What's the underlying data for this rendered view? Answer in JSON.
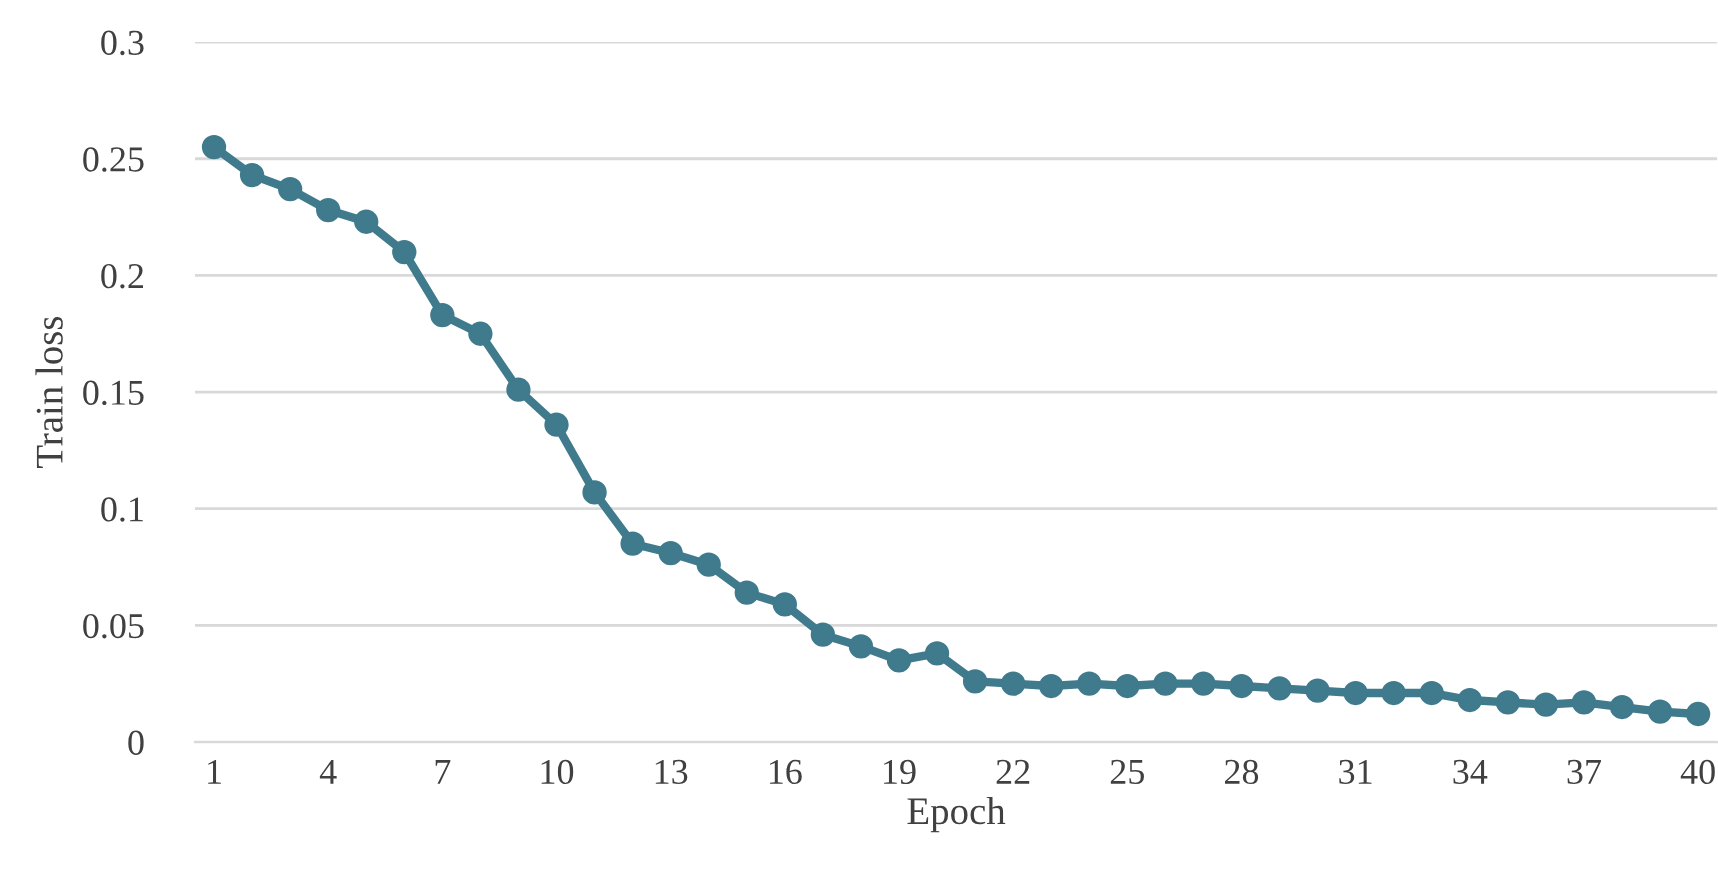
{
  "chart_data": {
    "type": "line",
    "xlabel": "Epoch",
    "ylabel": "Train loss",
    "categories": [
      "1",
      null,
      null,
      "4",
      null,
      null,
      "7",
      null,
      null,
      "10",
      null,
      null,
      "13",
      null,
      null,
      "16",
      null,
      null,
      "19",
      null,
      null,
      "22",
      null,
      null,
      "25",
      null,
      null,
      "28",
      null,
      null,
      "31",
      null,
      null,
      "34",
      null,
      null,
      "37",
      null,
      null,
      "40"
    ],
    "series": [
      {
        "color": "#3f7a8d",
        "values": [
          0.255,
          0.243,
          0.237,
          0.228,
          0.223,
          0.21,
          0.183,
          0.175,
          0.151,
          0.136,
          0.107,
          0.085,
          0.081,
          0.076,
          0.064,
          0.059,
          0.046,
          0.041,
          0.035,
          0.038,
          0.026,
          0.025,
          0.024,
          0.025,
          0.024,
          0.025,
          0.025,
          0.024,
          0.023,
          0.022,
          0.021,
          0.021,
          0.021,
          0.018,
          0.017,
          0.016,
          0.017,
          0.015,
          0.013,
          0.012
        ]
      }
    ],
    "ylim": [
      0,
      0.3
    ],
    "yticks": [
      0,
      0.05,
      0.1,
      0.15,
      0.2,
      0.25,
      0.3
    ],
    "grid": "y",
    "marker": "circle",
    "line_style": "solid"
  }
}
